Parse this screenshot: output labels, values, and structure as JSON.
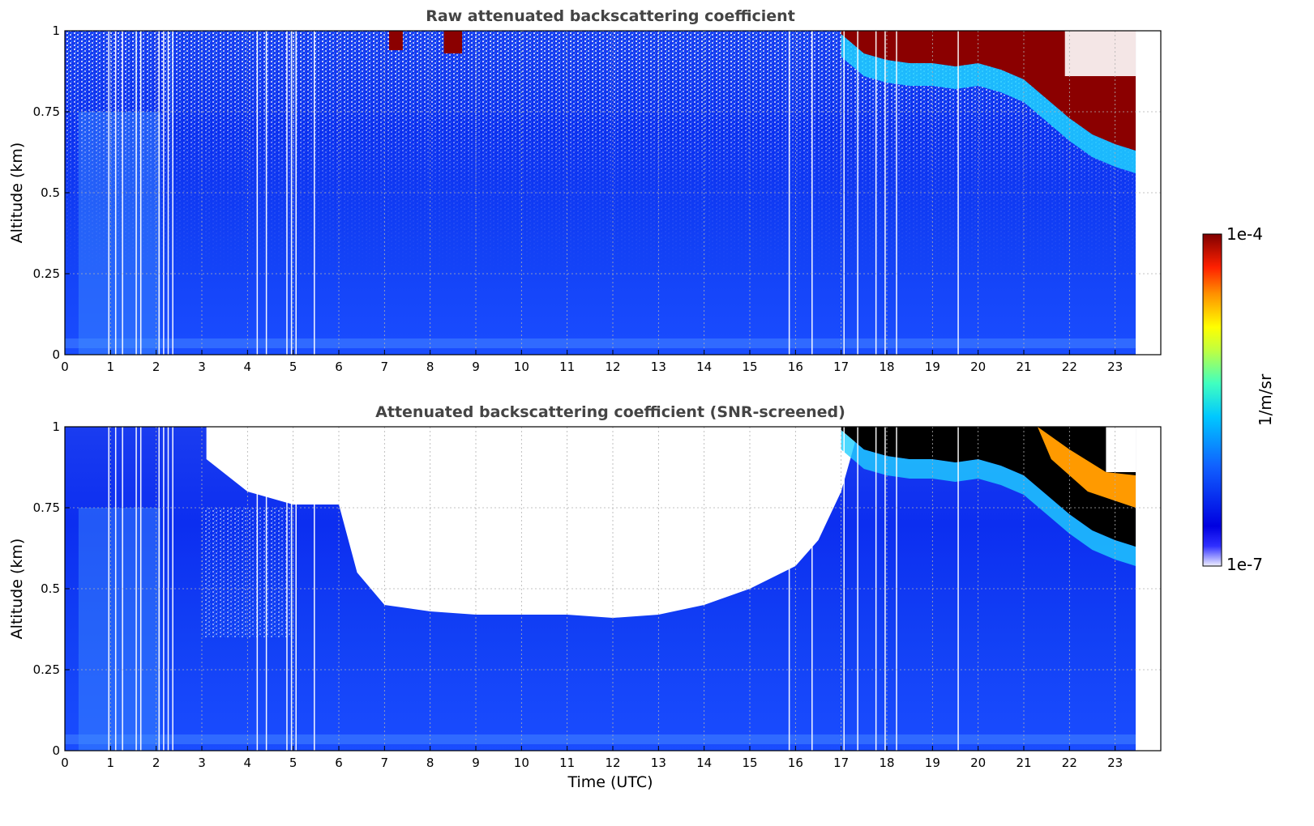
{
  "chart_data": [
    {
      "type": "heatmap",
      "title": "Raw attenuated backscattering coefficient",
      "xlabel": "",
      "ylabel": "Altitude (km)",
      "x_ticks": [
        "0",
        "1",
        "2",
        "3",
        "4",
        "5",
        "6",
        "7",
        "8",
        "9",
        "10",
        "11",
        "12",
        "13",
        "14",
        "15",
        "16",
        "17",
        "18",
        "19",
        "20",
        "21",
        "22",
        "23"
      ],
      "y_ticks": [
        "0",
        "0.25",
        "0.5",
        "0.75",
        "1"
      ],
      "xlim": [
        0,
        24
      ],
      "ylim": [
        0,
        1
      ],
      "grid": true,
      "cloud_base_km": [
        {
          "t": 17.0,
          "z": 0.99
        },
        {
          "t": 17.5,
          "z": 0.93
        },
        {
          "t": 18.0,
          "z": 0.91
        },
        {
          "t": 18.5,
          "z": 0.9
        },
        {
          "t": 19.0,
          "z": 0.9
        },
        {
          "t": 19.5,
          "z": 0.89
        },
        {
          "t": 20.0,
          "z": 0.9
        },
        {
          "t": 20.5,
          "z": 0.88
        },
        {
          "t": 21.0,
          "z": 0.85
        },
        {
          "t": 21.5,
          "z": 0.79
        },
        {
          "t": 22.0,
          "z": 0.73
        },
        {
          "t": 22.5,
          "z": 0.68
        },
        {
          "t": 23.0,
          "z": 0.65
        },
        {
          "t": 23.45,
          "z": 0.63
        }
      ]
    },
    {
      "type": "heatmap",
      "title": "Attenuated backscattering coefficient (SNR-screened)",
      "xlabel": "Time (UTC)",
      "ylabel": "Altitude (km)",
      "x_ticks": [
        "0",
        "1",
        "2",
        "3",
        "4",
        "5",
        "6",
        "7",
        "8",
        "9",
        "10",
        "11",
        "12",
        "13",
        "14",
        "15",
        "16",
        "17",
        "18",
        "19",
        "20",
        "21",
        "22",
        "23"
      ],
      "y_ticks": [
        "0",
        "0.25",
        "0.5",
        "0.75",
        "1"
      ],
      "xlim": [
        0,
        24
      ],
      "ylim": [
        0,
        1
      ],
      "grid": true,
      "screened_lower_boundary_km": [
        {
          "t": 3.1,
          "z": 0.9
        },
        {
          "t": 4.0,
          "z": 0.8
        },
        {
          "t": 5.0,
          "z": 0.76
        },
        {
          "t": 6.0,
          "z": 0.76
        },
        {
          "t": 6.4,
          "z": 0.55
        },
        {
          "t": 7.0,
          "z": 0.45
        },
        {
          "t": 8.0,
          "z": 0.43
        },
        {
          "t": 9.0,
          "z": 0.42
        },
        {
          "t": 10.0,
          "z": 0.42
        },
        {
          "t": 11.0,
          "z": 0.42
        },
        {
          "t": 12.0,
          "z": 0.41
        },
        {
          "t": 13.0,
          "z": 0.42
        },
        {
          "t": 14.0,
          "z": 0.45
        },
        {
          "t": 15.0,
          "z": 0.5
        },
        {
          "t": 16.0,
          "z": 0.57
        },
        {
          "t": 16.5,
          "z": 0.65
        },
        {
          "t": 17.0,
          "z": 0.8
        },
        {
          "t": 17.3,
          "z": 0.95
        }
      ]
    }
  ],
  "colorbar": {
    "label": "1/m/sr",
    "max_label": "1e-4",
    "min_label": "1e-7",
    "colormap": "jet"
  }
}
